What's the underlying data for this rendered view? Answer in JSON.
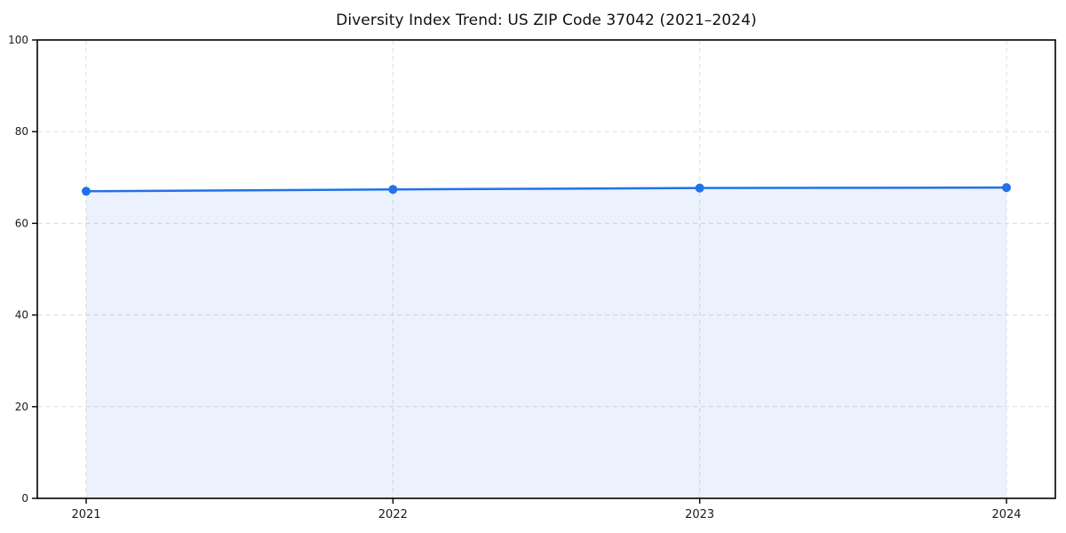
{
  "chart_data": {
    "type": "area",
    "title": "Diversity Index Trend: US ZIP Code 37042 (2021–2024)",
    "x": [
      2021,
      2022,
      2023,
      2024
    ],
    "x_tick_labels": [
      "2021",
      "2022",
      "2023",
      "2024"
    ],
    "series": [
      {
        "name": "Diversity Index",
        "values": [
          67.0,
          67.4,
          67.7,
          67.8
        ]
      }
    ],
    "xlabel": "",
    "ylabel": "",
    "ylim": [
      0,
      100
    ],
    "yticks": [
      0,
      20,
      40,
      60,
      80,
      100
    ],
    "grid": {
      "visible": true,
      "style": "dashed",
      "color": "#dcdcdc"
    },
    "legend": {
      "visible": false
    },
    "marker": {
      "shape": "circle",
      "size": 5
    },
    "colors": {
      "line": "#2272e8",
      "marker": "#2272e8",
      "fill": "#2272e8",
      "fill_opacity": 0.09,
      "axis": "#000000",
      "tick_label": "#1a1a1a",
      "title": "#111111",
      "background": "#ffffff"
    }
  }
}
